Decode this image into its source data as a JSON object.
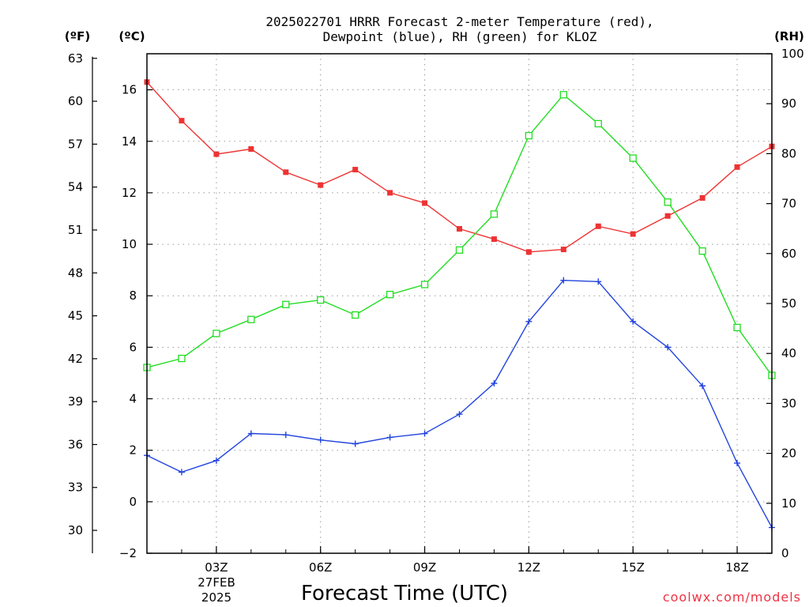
{
  "chart_data": {
    "type": "line",
    "title_line1": "2025022701 HRRR Forecast 2-meter Temperature (red),",
    "title_line2": "Dewpoint (blue), RH (green) for KLOZ",
    "units": {
      "fahrenheit": "(ºF)",
      "celsius": "(ºC)",
      "rh": "(RH)"
    },
    "xlabel": "Forecast Time (UTC)",
    "x_hours": [
      1,
      2,
      3,
      4,
      5,
      6,
      7,
      8,
      9,
      10,
      11,
      12,
      13,
      14,
      15,
      16,
      17,
      18,
      19
    ],
    "xlim": [
      1,
      19
    ],
    "x_ticks": [
      {
        "hour": 3,
        "label": "03Z"
      },
      {
        "hour": 6,
        "label": "06Z"
      },
      {
        "hour": 9,
        "label": "09Z"
      },
      {
        "hour": 12,
        "label": "12Z"
      },
      {
        "hour": 15,
        "label": "15Z"
      },
      {
        "hour": 18,
        "label": "18Z"
      }
    ],
    "date_label": {
      "day": "27FEB",
      "year": "2025"
    },
    "ylim_celsius": [
      -2,
      17.4
    ],
    "y_ticks_celsius": [
      -2,
      0,
      2,
      4,
      6,
      8,
      10,
      12,
      14,
      16
    ],
    "y_ticks_fahrenheit": [
      30,
      33,
      36,
      39,
      42,
      45,
      48,
      51,
      54,
      57,
      60,
      63
    ],
    "ylim_rh": [
      0,
      100
    ],
    "y_ticks_rh": [
      0,
      10,
      20,
      30,
      40,
      50,
      60,
      70,
      80,
      90,
      100
    ],
    "grid": true,
    "series": [
      {
        "name": "Temperature",
        "axis": "celsius",
        "color": "#ee3333",
        "marker": "filled-square",
        "values": [
          16.3,
          14.8,
          13.5,
          13.7,
          12.8,
          12.3,
          12.9,
          12.0,
          11.6,
          10.6,
          10.2,
          9.7,
          9.8,
          10.7,
          10.4,
          11.1,
          11.8,
          13.0,
          13.8
        ]
      },
      {
        "name": "Dewpoint",
        "axis": "celsius",
        "color": "#2244dd",
        "marker": "plus",
        "values": [
          1.8,
          1.15,
          1.6,
          2.65,
          2.6,
          2.4,
          2.25,
          2.5,
          2.65,
          3.4,
          4.6,
          7.0,
          8.6,
          8.55,
          7.0,
          6.0,
          4.5,
          1.5,
          -1.0
        ]
      },
      {
        "name": "RH",
        "axis": "rh",
        "color": "#22dd22",
        "marker": "open-square",
        "values": [
          37.2,
          39.0,
          44.0,
          46.8,
          49.8,
          50.7,
          47.7,
          51.8,
          53.8,
          60.7,
          67.9,
          83.6,
          91.8,
          86.0,
          79.1,
          70.3,
          60.5,
          45.2,
          35.6
        ]
      }
    ]
  },
  "credit": {
    "text": "coolwx.com/models",
    "color": "#ee3344"
  }
}
